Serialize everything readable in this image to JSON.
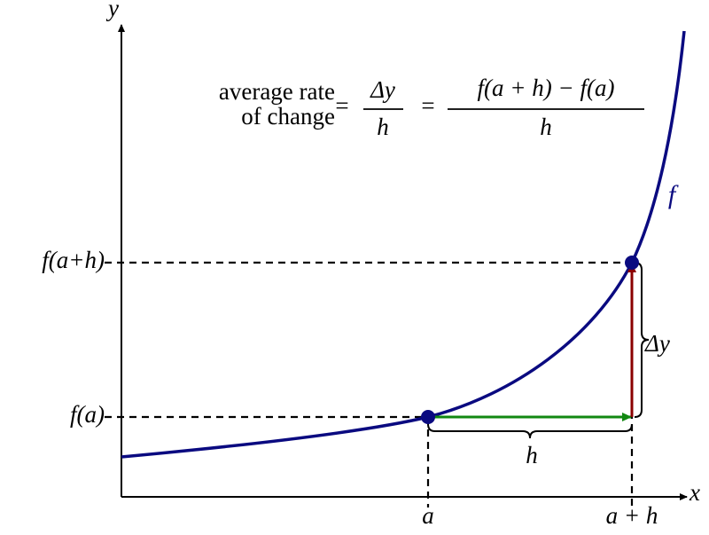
{
  "axes": {
    "x": "x",
    "y": "y"
  },
  "curve_label": "f",
  "y_labels": [
    "f(a+h)",
    "f(a)"
  ],
  "x_labels": [
    "a",
    "a + h"
  ],
  "delta_y": "Δy",
  "h": "h",
  "formula": {
    "lhs": [
      "average rate",
      "of change"
    ],
    "eq1": "=",
    "frac1": {
      "num": "Δy",
      "den": "h"
    },
    "eq2": "=",
    "frac2": {
      "num": "f(a + h) − f(a)",
      "den": "h"
    }
  }
}
